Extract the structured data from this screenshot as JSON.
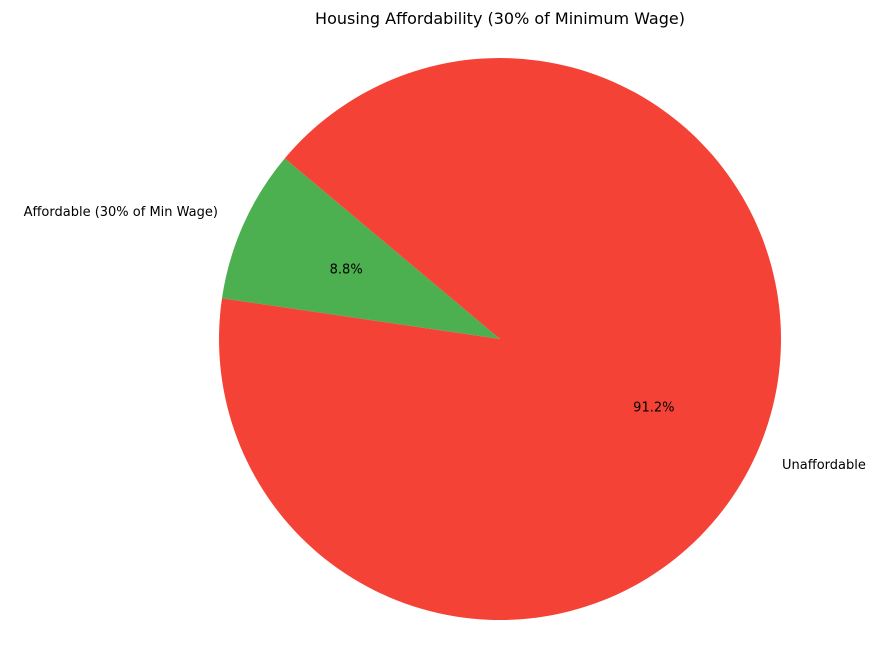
{
  "chart_data": {
    "type": "pie",
    "title": "Housing Affordability (30% of Minimum Wage)",
    "start_angle_deg": 140,
    "direction": "counterclockwise",
    "slices": [
      {
        "label": "Affordable (30% of Min Wage)",
        "value": 8.8,
        "pct_label": "8.8%",
        "color": "#4caf50"
      },
      {
        "label": "Unaffordable",
        "value": 91.2,
        "pct_label": "91.2%",
        "color": "#f44336"
      }
    ]
  }
}
